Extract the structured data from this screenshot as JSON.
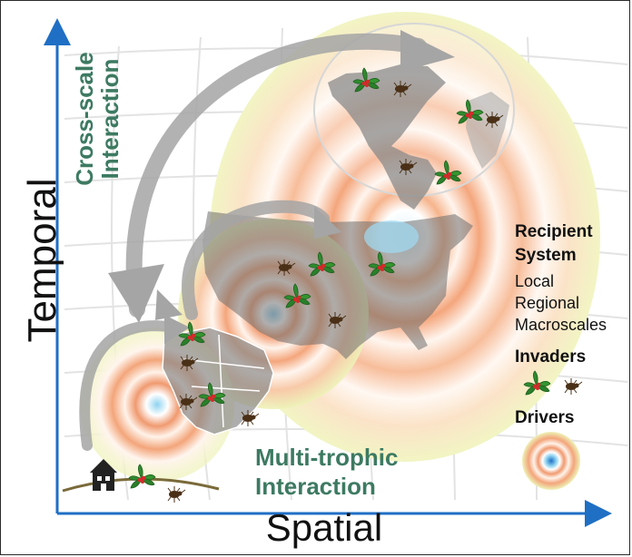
{
  "axes": {
    "y_label": "Temporal",
    "x_label": "Spatial"
  },
  "annotations": {
    "cross_scale_line1": "Cross-scale",
    "cross_scale_line2": "Interaction",
    "multi_trophic_line1": "Multi-trophic",
    "multi_trophic_line2": "Interaction"
  },
  "legend": {
    "recipient_line1": "Recipient",
    "recipient_line2": "System",
    "scales": [
      "Local",
      "Regional",
      "Macroscales"
    ],
    "invaders": "Invaders",
    "drivers": "Drivers"
  },
  "colors": {
    "axis": "#1f6fc4",
    "annotation_text": "#3d7a62",
    "land_dark": "#6e6e6e",
    "land_light": "#bdbdbd",
    "ring_orange": "#f3a57a",
    "ring_yellow": "#eef2b8",
    "driver_blue": "#8fd3f0",
    "arrow_grey": "#a5a5a5",
    "leaf_green": "#2f8a2f",
    "berry_red": "#d42a2a",
    "insect_brown": "#4a3016"
  },
  "icons": [
    "house-icon",
    "holly-plant-icon",
    "beetle-icon",
    "drivers-target-icon"
  ]
}
